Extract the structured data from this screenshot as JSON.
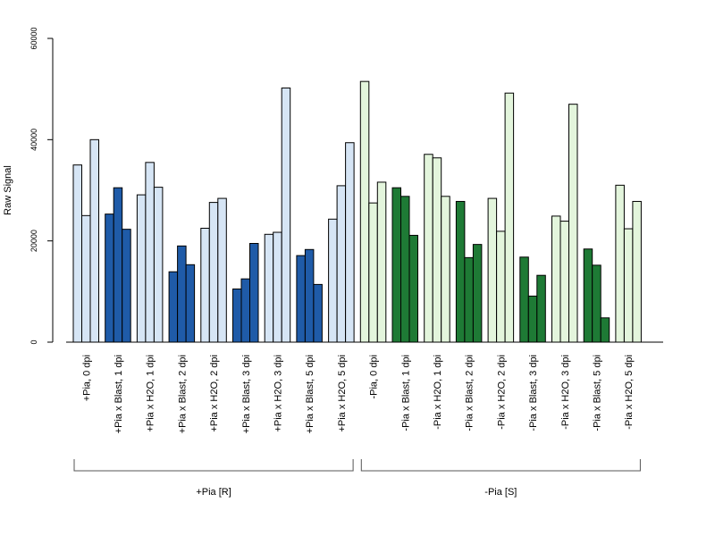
{
  "chart_data": {
    "type": "bar",
    "ylabel": "Raw Signal",
    "xlabel": "",
    "ylim": [
      0,
      60000
    ],
    "yticks": [
      0,
      20000,
      40000,
      60000
    ],
    "grid": false,
    "colors": {
      "plus_light": "#d6e5f5",
      "plus_dark": "#1f5ba8",
      "minus_light": "#e3f5dc",
      "minus_dark": "#1e7a35"
    },
    "categories": [
      {
        "label": "+Pia, 0 dpi",
        "shade": "plus_light",
        "values": [
          35000,
          25000,
          40000
        ]
      },
      {
        "label": "+Pia x Blast, 1 dpi",
        "shade": "plus_dark",
        "values": [
          25300,
          30500,
          22300
        ]
      },
      {
        "label": "+Pia x H2O, 1 dpi",
        "shade": "plus_light",
        "values": [
          29100,
          35500,
          30600
        ]
      },
      {
        "label": "+Pia x Blast, 2 dpi",
        "shade": "plus_dark",
        "values": [
          13900,
          19000,
          15300
        ]
      },
      {
        "label": "+Pia x H2O, 2 dpi",
        "shade": "plus_light",
        "values": [
          22500,
          27600,
          28400
        ]
      },
      {
        "label": "+Pia x Blast, 3 dpi",
        "shade": "plus_dark",
        "values": [
          10500,
          12500,
          19500
        ]
      },
      {
        "label": "+Pia x H2O, 3 dpi",
        "shade": "plus_light",
        "values": [
          21300,
          21700,
          50200
        ]
      },
      {
        "label": "+Pia x Blast, 5 dpi",
        "shade": "plus_dark",
        "values": [
          17100,
          18300,
          11400
        ]
      },
      {
        "label": "+Pia x H2O, 5 dpi",
        "shade": "plus_light",
        "values": [
          24300,
          30900,
          39400
        ]
      },
      {
        "label": "-Pia, 0 dpi",
        "shade": "minus_light",
        "values": [
          51500,
          27500,
          31600
        ]
      },
      {
        "label": "-Pia x Blast, 1 dpi",
        "shade": "minus_dark",
        "values": [
          30500,
          28800,
          21100
        ]
      },
      {
        "label": "-Pia x H2O, 1 dpi",
        "shade": "minus_light",
        "values": [
          37100,
          36400,
          28800
        ]
      },
      {
        "label": "-Pia x Blast, 2 dpi",
        "shade": "minus_dark",
        "values": [
          27800,
          16700,
          19300
        ]
      },
      {
        "label": "-Pia x H2O, 2 dpi",
        "shade": "minus_light",
        "values": [
          28400,
          21900,
          49200
        ]
      },
      {
        "label": "-Pia x Blast, 3 dpi",
        "shade": "minus_dark",
        "values": [
          16800,
          9100,
          13200
        ]
      },
      {
        "label": "-Pia x H2O, 3 dpi",
        "shade": "minus_light",
        "values": [
          24900,
          23900,
          47000
        ]
      },
      {
        "label": "-Pia x Blast, 5 dpi",
        "shade": "minus_dark",
        "values": [
          18400,
          15200,
          4800
        ]
      },
      {
        "label": "-Pia x H2O, 5 dpi",
        "shade": "minus_light",
        "values": [
          31000,
          22400,
          27800
        ]
      }
    ],
    "groups": [
      {
        "label": "+Pia [R]",
        "first": 0,
        "last": 8
      },
      {
        "label": "-Pia [S]",
        "first": 9,
        "last": 17
      }
    ]
  }
}
